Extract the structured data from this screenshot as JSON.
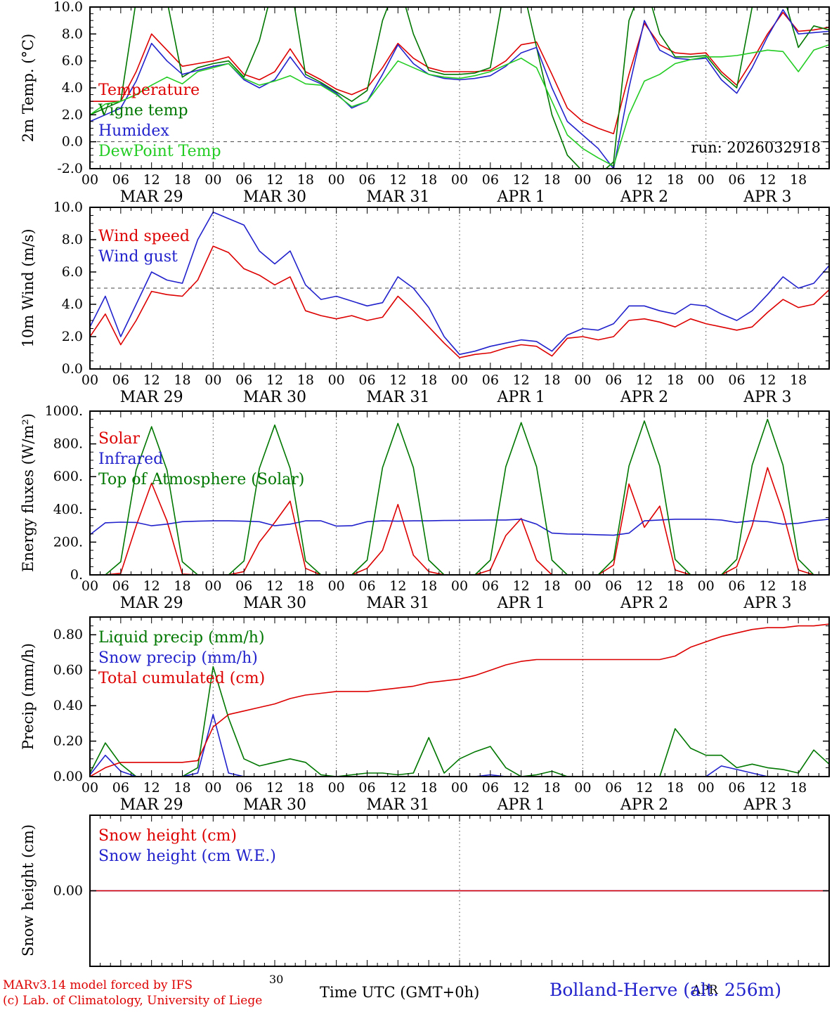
{
  "run_label": "run: 2026032918",
  "footer": {
    "credit_line1": "MARv3.14 model forced by IFS",
    "credit_line2": "(c) Lab. of Climatology, University of Liege",
    "xaxis_title": "Time UTC (GMT+0h)",
    "station": "Bolland-Herve (alt. 256m)",
    "stray_left": "30",
    "stray_right": "APR"
  },
  "colors": {
    "red": "#dd0000",
    "blue": "#2222cc",
    "dark_green": "#007700",
    "light_green": "#22cc22",
    "black": "#000000"
  },
  "chart_data": {
    "type": "line",
    "x_hours": {
      "start": 0,
      "end": 144,
      "step": 3
    },
    "hour_ticks": [
      "00",
      "06",
      "12",
      "18"
    ],
    "days": [
      "MAR 29",
      "MAR 30",
      "MAR 31",
      "APR  1",
      "APR  2",
      "APR  3"
    ],
    "panels": [
      {
        "ylabel": "2m Temp. (°C)",
        "ylim": [
          -2,
          10
        ],
        "yticks": [
          -2,
          0,
          2,
          4,
          6,
          8,
          10
        ],
        "ytick_labels": [
          "-2.0",
          "0.0",
          "2.0",
          "4.0",
          "6.0",
          "8.0",
          "10.0"
        ],
        "yminor": 0.5,
        "hline": 0,
        "vlines": [
          24,
          48,
          72,
          96,
          120
        ],
        "show_xlabels": true,
        "annotation": "run: 2026032918",
        "series": [
          {
            "name": "Temperature",
            "color": "#dd0000",
            "values": [
              3.0,
              3.0,
              3.0,
              5.2,
              8.0,
              6.8,
              5.6,
              5.8,
              6.0,
              6.3,
              5.0,
              4.6,
              5.2,
              6.9,
              5.2,
              4.6,
              3.9,
              3.5,
              4.0,
              5.5,
              7.3,
              6.2,
              5.5,
              5.2,
              5.2,
              5.2,
              5.3,
              6.0,
              7.2,
              7.4,
              5.0,
              2.5,
              1.5,
              1.0,
              0.6,
              5.0,
              8.8,
              7.2,
              6.6,
              6.5,
              6.6,
              5.2,
              4.2,
              6.0,
              8.0,
              9.6,
              8.2,
              8.3,
              8.5
            ]
          },
          {
            "name": "Vigne temp",
            "color": "#007700",
            "values": [
              2.0,
              2.5,
              3.0,
              10.5,
              12.0,
              10.5,
              4.8,
              5.5,
              5.8,
              6.0,
              4.8,
              7.5,
              12.0,
              12.0,
              5.0,
              4.4,
              3.7,
              3.0,
              3.8,
              9.0,
              12.0,
              8.0,
              5.3,
              5.0,
              5.0,
              5.1,
              5.5,
              12.0,
              12.0,
              7.0,
              2.0,
              -1.0,
              -2.2,
              -2.5,
              -1.5,
              9.0,
              12.0,
              8.0,
              6.3,
              6.3,
              6.4,
              5.0,
              4.0,
              10.0,
              12.0,
              11.0,
              7.0,
              8.6,
              8.3
            ]
          },
          {
            "name": "Humidex",
            "color": "#2222cc",
            "values": [
              1.5,
              2.0,
              2.5,
              4.5,
              7.3,
              6.0,
              5.0,
              5.3,
              5.6,
              5.8,
              4.6,
              4.0,
              4.6,
              6.3,
              4.8,
              4.3,
              3.6,
              2.5,
              3.0,
              5.0,
              7.2,
              5.8,
              5.0,
              4.7,
              4.6,
              4.7,
              4.9,
              5.6,
              6.6,
              7.0,
              4.0,
              1.5,
              0.5,
              -0.5,
              -2.0,
              4.0,
              9.0,
              6.8,
              6.2,
              6.1,
              6.2,
              4.6,
              3.6,
              5.5,
              7.8,
              9.8,
              8.0,
              8.1,
              8.2
            ]
          },
          {
            "name": "DewPoint Temp",
            "color": "#22cc22",
            "values": [
              2.0,
              2.8,
              3.0,
              3.5,
              4.2,
              4.8,
              4.3,
              5.2,
              5.5,
              5.8,
              4.7,
              4.2,
              4.5,
              4.9,
              4.3,
              4.2,
              3.5,
              2.6,
              3.0,
              4.5,
              6.0,
              5.5,
              5.0,
              4.8,
              4.7,
              4.9,
              5.2,
              5.7,
              6.2,
              5.5,
              3.0,
              0.5,
              -0.5,
              -1.2,
              -1.8,
              2.0,
              4.5,
              5.0,
              5.8,
              6.1,
              6.3,
              6.3,
              6.4,
              6.6,
              6.8,
              6.7,
              5.2,
              6.8,
              7.2
            ]
          }
        ]
      },
      {
        "ylabel": "10m Wind (m/s)",
        "ylim": [
          0,
          10
        ],
        "yticks": [
          0,
          2,
          4,
          6,
          8,
          10
        ],
        "ytick_labels": [
          "0.0",
          "2.0",
          "4.0",
          "6.0",
          "8.0",
          "10.0"
        ],
        "yminor": 0.5,
        "hline": 5,
        "vlines": [
          24,
          48,
          72,
          96,
          120
        ],
        "show_xlabels": true,
        "series": [
          {
            "name": "Wind speed",
            "color": "#dd0000",
            "values": [
              2.0,
              3.4,
              1.5,
              3.0,
              4.8,
              4.6,
              4.5,
              5.5,
              7.6,
              7.2,
              6.2,
              5.8,
              5.2,
              5.7,
              3.6,
              3.3,
              3.1,
              3.3,
              3.0,
              3.2,
              4.5,
              3.6,
              2.6,
              1.6,
              0.7,
              0.9,
              1.0,
              1.3,
              1.5,
              1.4,
              0.8,
              1.9,
              2.0,
              1.8,
              2.0,
              3.0,
              3.1,
              2.9,
              2.6,
              3.1,
              2.8,
              2.6,
              2.4,
              2.6,
              3.5,
              4.3,
              3.8,
              4.0,
              4.9
            ]
          },
          {
            "name": "Wind gust",
            "color": "#2222cc",
            "values": [
              2.6,
              4.5,
              2.0,
              4.0,
              6.0,
              5.5,
              5.3,
              8.0,
              9.7,
              9.3,
              8.9,
              7.3,
              6.5,
              7.3,
              5.2,
              4.3,
              4.5,
              4.2,
              3.9,
              4.1,
              5.7,
              5.0,
              3.8,
              2.0,
              0.9,
              1.1,
              1.4,
              1.6,
              1.8,
              1.7,
              1.1,
              2.1,
              2.5,
              2.4,
              2.8,
              3.9,
              3.9,
              3.6,
              3.4,
              4.0,
              3.9,
              3.4,
              3.0,
              3.6,
              4.6,
              5.7,
              5.0,
              5.3,
              6.4
            ]
          }
        ]
      },
      {
        "ylabel": "Energy fluxes (W/m²)",
        "ylim": [
          0,
          1000
        ],
        "yticks": [
          0,
          200,
          400,
          600,
          800,
          1000
        ],
        "ytick_labels": [
          "0.",
          "200.",
          "400.",
          "600.",
          "800.",
          "1000."
        ],
        "yminor": 50,
        "vlines": [
          24,
          48,
          72,
          96,
          120
        ],
        "show_xlabels": true,
        "series": [
          {
            "name": "Solar",
            "color": "#dd0000",
            "values": [
              0,
              0,
              10,
              300,
              560,
              330,
              5,
              0,
              0,
              0,
              20,
              200,
              320,
              450,
              40,
              0,
              0,
              0,
              40,
              150,
              430,
              120,
              20,
              0,
              0,
              0,
              30,
              240,
              345,
              90,
              0,
              0,
              0,
              0,
              60,
              555,
              290,
              420,
              30,
              0,
              0,
              0,
              50,
              300,
              655,
              380,
              30,
              0,
              0
            ]
          },
          {
            "name": "Infrared",
            "color": "#2222cc",
            "values": [
              245,
              318,
              322,
              320,
              300,
              310,
              325,
              328,
              330,
              330,
              328,
              325,
              300,
              310,
              330,
              330,
              298,
              300,
              325,
              330,
              328,
              330,
              330,
              332,
              333,
              334,
              335,
              335,
              340,
              310,
              255,
              250,
              248,
              245,
              242,
              255,
              330,
              335,
              340,
              340,
              340,
              335,
              320,
              330,
              325,
              310,
              315,
              330,
              340
            ]
          },
          {
            "name": "Top of Atmosphere (Solar)",
            "color": "#007700",
            "values": [
              0,
              0,
              80,
              640,
              905,
              640,
              80,
              0,
              0,
              0,
              85,
              650,
              915,
              650,
              85,
              0,
              0,
              0,
              90,
              655,
              925,
              655,
              90,
              0,
              0,
              0,
              90,
              660,
              930,
              660,
              90,
              0,
              0,
              0,
              95,
              665,
              940,
              665,
              95,
              0,
              0,
              0,
              95,
              670,
              950,
              670,
              95,
              0,
              0
            ]
          }
        ]
      },
      {
        "ylabel": "Precip (mm/h)",
        "ylim": [
          0,
          0.9
        ],
        "yticks": [
          0,
          0.2,
          0.4,
          0.6,
          0.8
        ],
        "ytick_labels": [
          "0.00",
          "0.20",
          "0.40",
          "0.60",
          "0.80"
        ],
        "yminor": 0.05,
        "vlines": [
          24,
          48,
          72,
          96,
          120
        ],
        "show_xlabels": true,
        "series": [
          {
            "name": "Liquid precip (mm/h)",
            "color": "#007700",
            "values": [
              0.02,
              0.19,
              0.07,
              0.0,
              0.0,
              0.0,
              0.0,
              0.05,
              0.62,
              0.33,
              0.1,
              0.06,
              0.08,
              0.1,
              0.08,
              0.01,
              0.0,
              0.01,
              0.02,
              0.02,
              0.01,
              0.02,
              0.22,
              0.02,
              0.1,
              0.14,
              0.17,
              0.05,
              0.0,
              0.01,
              0.03,
              0.0,
              0.0,
              0.0,
              0.0,
              0.0,
              0.0,
              0.0,
              0.27,
              0.16,
              0.12,
              0.12,
              0.05,
              0.07,
              0.05,
              0.04,
              0.02,
              0.15,
              0.07
            ]
          },
          {
            "name": "Snow precip (mm/h)",
            "color": "#2222cc",
            "values": [
              0.01,
              0.12,
              0.03,
              0.0,
              0.0,
              0.0,
              0.0,
              0.02,
              0.35,
              0.02,
              0.0,
              0.0,
              0.0,
              0.0,
              0.0,
              0.0,
              0.0,
              0.0,
              0.0,
              0.0,
              0.0,
              0.0,
              0.0,
              0.0,
              0.0,
              0.0,
              0.01,
              0.0,
              0.0,
              0.0,
              0.0,
              0.0,
              0.0,
              0.0,
              0.0,
              0.0,
              0.0,
              0.0,
              0.0,
              0.0,
              0.0,
              0.06,
              0.04,
              0.02,
              0.0,
              0.0,
              0.0,
              0.0,
              0.0
            ]
          },
          {
            "name": "Total cumulated (cm)",
            "color": "#dd0000",
            "values": [
              0.0,
              0.05,
              0.08,
              0.08,
              0.08,
              0.08,
              0.08,
              0.09,
              0.28,
              0.35,
              0.37,
              0.39,
              0.41,
              0.44,
              0.46,
              0.47,
              0.48,
              0.48,
              0.48,
              0.49,
              0.5,
              0.51,
              0.53,
              0.54,
              0.55,
              0.57,
              0.6,
              0.63,
              0.65,
              0.66,
              0.66,
              0.66,
              0.66,
              0.66,
              0.66,
              0.66,
              0.66,
              0.66,
              0.68,
              0.73,
              0.76,
              0.79,
              0.81,
              0.83,
              0.84,
              0.84,
              0.85,
              0.85,
              0.86
            ]
          }
        ]
      },
      {
        "ylabel": "Snow height (cm)",
        "ylim": [
          -1,
          1
        ],
        "yticks": [
          0
        ],
        "ytick_labels": [
          "0.00"
        ],
        "vlines": [
          72
        ],
        "show_xlabels": false,
        "series": [
          {
            "name": "Snow height (cm W.E.)",
            "color": "#2222cc",
            "values": [
              0,
              0,
              0,
              0,
              0,
              0,
              0,
              0,
              0,
              0,
              0,
              0,
              0,
              0,
              0,
              0,
              0,
              0,
              0,
              0,
              0,
              0,
              0,
              0,
              0,
              0,
              0,
              0,
              0,
              0,
              0,
              0,
              0,
              0,
              0,
              0,
              0,
              0,
              0,
              0,
              0,
              0,
              0,
              0,
              0,
              0,
              0,
              0,
              0
            ]
          },
          {
            "name": "Snow height (cm)",
            "color": "#dd0000",
            "values": [
              0,
              0,
              0,
              0,
              0,
              0,
              0,
              0,
              0,
              0,
              0,
              0,
              0,
              0,
              0,
              0,
              0,
              0,
              0,
              0,
              0,
              0,
              0,
              0,
              0,
              0,
              0,
              0,
              0,
              0,
              0,
              0,
              0,
              0,
              0,
              0,
              0,
              0,
              0,
              0,
              0,
              0,
              0,
              0,
              0,
              0,
              0,
              0,
              0
            ]
          }
        ]
      }
    ]
  }
}
